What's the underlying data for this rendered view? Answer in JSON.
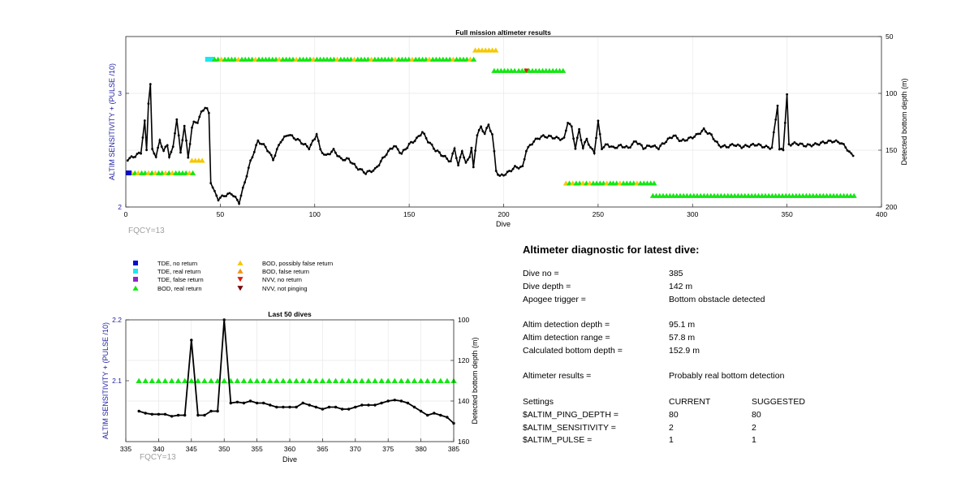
{
  "colors": {
    "tde_no_return": "#0a0ad2",
    "tde_real_return": "#1ee6f0",
    "tde_false_return": "#8c28c8",
    "bod_real_return": "#14e614",
    "bod_possibly_false": "#f5c800",
    "bod_false_return": "#f09614",
    "nvv_no_return": "#dc1e0a",
    "nvv_not_pinging": "#780a0a",
    "left_axis": "#1e1ea0",
    "line": "#000000",
    "fqcy": "#a0a0a0"
  },
  "legend": [
    {
      "label": "TDE, no return",
      "marker": "square",
      "color_key": "tde_no_return"
    },
    {
      "label": "TDE, real return",
      "marker": "square",
      "color_key": "tde_real_return"
    },
    {
      "label": "TDE, false return",
      "marker": "square",
      "color_key": "tde_false_return"
    },
    {
      "label": "BOD, real return",
      "marker": "triangle-up",
      "color_key": "bod_real_return"
    },
    {
      "label": "BOD, possibly false return",
      "marker": "triangle-up",
      "color_key": "bod_possibly_false"
    },
    {
      "label": "BOD, false return",
      "marker": "triangle-up",
      "color_key": "bod_false_return"
    },
    {
      "label": "NVV, no return",
      "marker": "triangle-down",
      "color_key": "nvv_no_return"
    },
    {
      "label": "NVV, not pinging",
      "marker": "triangle-down",
      "color_key": "nvv_not_pinging"
    }
  ],
  "chart_data": [
    {
      "type": "line",
      "title": "Full mission altimeter results",
      "xlabel": "Dive",
      "ylabel": "ALTIM SENSITIVITY + (PULSE /10)",
      "y2label": "Detected bottom depth (m)",
      "annotation": "FQCY=13",
      "xlim": [
        0,
        400
      ],
      "ylim": [
        2,
        3.5
      ],
      "y2lim": [
        200,
        50
      ],
      "y2_reversed": true,
      "xticks": [
        "0",
        "50",
        "100",
        "150",
        "200",
        "250",
        "300",
        "350",
        "400"
      ],
      "yticks": [
        "2",
        "3"
      ],
      "y2ticks": [
        "50",
        "100",
        "150",
        "200"
      ],
      "grid": true,
      "bottom_depth_keypoints": [
        [
          1,
          158
        ],
        [
          5,
          155
        ],
        [
          8,
          152
        ],
        [
          10,
          125
        ],
        [
          11,
          150
        ],
        [
          12,
          108
        ],
        [
          13,
          92
        ],
        [
          14,
          150
        ],
        [
          16,
          155
        ],
        [
          18,
          142
        ],
        [
          20,
          150
        ],
        [
          22,
          146
        ],
        [
          23,
          155
        ],
        [
          25,
          148
        ],
        [
          27,
          122
        ],
        [
          29,
          153
        ],
        [
          31,
          128
        ],
        [
          33,
          157
        ],
        [
          35,
          130
        ],
        [
          36,
          126
        ],
        [
          38,
          125
        ],
        [
          40,
          117
        ],
        [
          42,
          112
        ],
        [
          43,
          114
        ],
        [
          44,
          118
        ],
        [
          45,
          178
        ],
        [
          47,
          187
        ],
        [
          49,
          193
        ],
        [
          52,
          190
        ],
        [
          56,
          188
        ],
        [
          60,
          196
        ],
        [
          63,
          178
        ],
        [
          66,
          160
        ],
        [
          70,
          142
        ],
        [
          74,
          147
        ],
        [
          78,
          158
        ],
        [
          82,
          142
        ],
        [
          86,
          136
        ],
        [
          92,
          142
        ],
        [
          97,
          148
        ],
        [
          100,
          140
        ],
        [
          101,
          135
        ],
        [
          103,
          150
        ],
        [
          106,
          155
        ],
        [
          110,
          150
        ],
        [
          114,
          158
        ],
        [
          118,
          158
        ],
        [
          122,
          165
        ],
        [
          127,
          170
        ],
        [
          132,
          167
        ],
        [
          138,
          153
        ],
        [
          142,
          146
        ],
        [
          146,
          153
        ],
        [
          150,
          145
        ],
        [
          154,
          140
        ],
        [
          157,
          134
        ],
        [
          160,
          142
        ],
        [
          164,
          150
        ],
        [
          168,
          155
        ],
        [
          172,
          160
        ],
        [
          174,
          148
        ],
        [
          176,
          164
        ],
        [
          178,
          150
        ],
        [
          180,
          162
        ],
        [
          182,
          155
        ],
        [
          183,
          148
        ],
        [
          184,
          166
        ],
        [
          185,
          150
        ],
        [
          186,
          136
        ],
        [
          188,
          130
        ],
        [
          190,
          135
        ],
        [
          192,
          128
        ],
        [
          194,
          136
        ],
        [
          196,
          168
        ],
        [
          198,
          173
        ],
        [
          202,
          170
        ],
        [
          206,
          165
        ],
        [
          210,
          165
        ],
        [
          212,
          150
        ],
        [
          216,
          142
        ],
        [
          220,
          138
        ],
        [
          224,
          138
        ],
        [
          230,
          140
        ],
        [
          232,
          140
        ],
        [
          234,
          125
        ],
        [
          236,
          130
        ],
        [
          238,
          148
        ],
        [
          240,
          132
        ],
        [
          242,
          148
        ],
        [
          244,
          140
        ],
        [
          246,
          148
        ],
        [
          248,
          152
        ],
        [
          250,
          125
        ],
        [
          252,
          148
        ],
        [
          255,
          145
        ],
        [
          258,
          148
        ],
        [
          262,
          146
        ],
        [
          266,
          148
        ],
        [
          270,
          142
        ],
        [
          274,
          148
        ],
        [
          278,
          146
        ],
        [
          282,
          148
        ],
        [
          286,
          142
        ],
        [
          290,
          137
        ],
        [
          294,
          142
        ],
        [
          298,
          140
        ],
        [
          302,
          137
        ],
        [
          306,
          132
        ],
        [
          310,
          137
        ],
        [
          314,
          146
        ],
        [
          318,
          147
        ],
        [
          322,
          145
        ],
        [
          326,
          147
        ],
        [
          330,
          146
        ],
        [
          334,
          145
        ],
        [
          338,
          147
        ],
        [
          342,
          148
        ],
        [
          345,
          110
        ],
        [
          346,
          150
        ],
        [
          348,
          149
        ],
        [
          350,
          102
        ],
        [
          351,
          145
        ],
        [
          355,
          144
        ],
        [
          360,
          146
        ],
        [
          365,
          145
        ],
        [
          370,
          143
        ],
        [
          374,
          142
        ],
        [
          378,
          143
        ],
        [
          381,
          147
        ],
        [
          383,
          152
        ],
        [
          385,
          155
        ]
      ],
      "marker_bands": [
        {
          "kind": "bod_real_return",
          "x_start": 3,
          "x_end": 36,
          "y": 2.3,
          "yellow_fraction": 0.35
        },
        {
          "kind": "tde_no_return",
          "x_start": 0,
          "x_end": 3,
          "y": 2.3
        },
        {
          "kind": "bod_possibly_false",
          "x_start": 35,
          "x_end": 42,
          "y": 2.41
        },
        {
          "kind": "tde_real_return",
          "x_start": 42,
          "x_end": 47,
          "y": 3.3
        },
        {
          "kind": "bod_real_return",
          "x_start": 47,
          "x_end": 185,
          "y": 3.3,
          "yellow_fraction": 0.12
        },
        {
          "kind": "bod_possibly_false",
          "x_start": 185,
          "x_end": 196,
          "y": 3.38
        },
        {
          "kind": "bod_real_return",
          "x_start": 195,
          "x_end": 206,
          "y": 3.2
        },
        {
          "kind": "bod_real_return",
          "x_start": 208,
          "x_end": 232,
          "y": 3.2
        },
        {
          "kind": "bod_real_return",
          "x_start": 233,
          "x_end": 257,
          "y": 2.21,
          "yellow_fraction": 0.25
        },
        {
          "kind": "bod_real_return",
          "x_start": 258,
          "x_end": 281,
          "y": 2.21,
          "yellow_fraction": 0.1
        },
        {
          "kind": "bod_real_return",
          "x_start": 279,
          "x_end": 386,
          "y": 2.1
        }
      ],
      "nvv_points": [
        {
          "x": 212,
          "y": 3.2
        }
      ]
    },
    {
      "type": "line",
      "title": "Last 50 dives",
      "xlabel": "Dive",
      "ylabel": "ALTIM SENSITIVITY + (PULSE /10)",
      "y2label": "Detected bottom depth (m)",
      "annotation": "FQCY=13",
      "xlim": [
        335,
        385
      ],
      "ylim": [
        2,
        2.2
      ],
      "y2lim": [
        160,
        100
      ],
      "y2_reversed": true,
      "xticks": [
        "335",
        "340",
        "345",
        "350",
        "355",
        "360",
        "365",
        "370",
        "375",
        "380",
        "385"
      ],
      "yticks": [
        "2.1",
        "2.2"
      ],
      "y2ticks": [
        "100",
        "120",
        "140",
        "160"
      ],
      "grid": true,
      "bottom_depth": [
        [
          337,
          145
        ],
        [
          338,
          146
        ],
        [
          339,
          146.5
        ],
        [
          340,
          146.5
        ],
        [
          341,
          146.5
        ],
        [
          342,
          147.5
        ],
        [
          343,
          147
        ],
        [
          344,
          147
        ],
        [
          345,
          110
        ],
        [
          346,
          147
        ],
        [
          347,
          147
        ],
        [
          348,
          145
        ],
        [
          349,
          145
        ],
        [
          350,
          100
        ],
        [
          351,
          141
        ],
        [
          352,
          140.5
        ],
        [
          353,
          141
        ],
        [
          354,
          140
        ],
        [
          355,
          141
        ],
        [
          356,
          141
        ],
        [
          357,
          142
        ],
        [
          358,
          143
        ],
        [
          359,
          143
        ],
        [
          360,
          143
        ],
        [
          361,
          143
        ],
        [
          362,
          141
        ],
        [
          363,
          142
        ],
        [
          364,
          143
        ],
        [
          365,
          144
        ],
        [
          366,
          143
        ],
        [
          367,
          143
        ],
        [
          368,
          144
        ],
        [
          369,
          144
        ],
        [
          370,
          143
        ],
        [
          371,
          142
        ],
        [
          372,
          142
        ],
        [
          373,
          142
        ],
        [
          374,
          141
        ],
        [
          375,
          140
        ],
        [
          376,
          139.5
        ],
        [
          377,
          140
        ],
        [
          378,
          141
        ],
        [
          379,
          143
        ],
        [
          380,
          145
        ],
        [
          381,
          147
        ],
        [
          382,
          146
        ],
        [
          383,
          147
        ],
        [
          384,
          148
        ],
        [
          385,
          151
        ]
      ],
      "bod_real_return_x": [
        337,
        385
      ],
      "bod_real_return_y": 2.1
    }
  ],
  "diagnostic": {
    "title": "Altimeter diagnostic for latest dive:",
    "rows": [
      {
        "label": "Dive no =",
        "value": "385"
      },
      {
        "label": "Dive depth =",
        "value": "142 m"
      },
      {
        "label": "Apogee trigger =",
        "value": "Bottom obstacle detected"
      },
      {
        "label": "Altim detection depth =",
        "value": "95.1 m"
      },
      {
        "label": "Altim detection range =",
        "value": "57.8 m"
      },
      {
        "label": "Calculated bottom depth =",
        "value": "152.9 m"
      },
      {
        "label": "Altimeter results =",
        "value": "Probably real bottom detection"
      }
    ],
    "settings": {
      "header": [
        "Settings",
        "CURRENT",
        "SUGGESTED"
      ],
      "rows": [
        [
          "$ALTIM_PING_DEPTH =",
          "80",
          "80"
        ],
        [
          "$ALTIM_SENSITIVITY =",
          "2",
          "2"
        ],
        [
          "$ALTIM_PULSE =",
          "1",
          "1"
        ]
      ]
    }
  }
}
